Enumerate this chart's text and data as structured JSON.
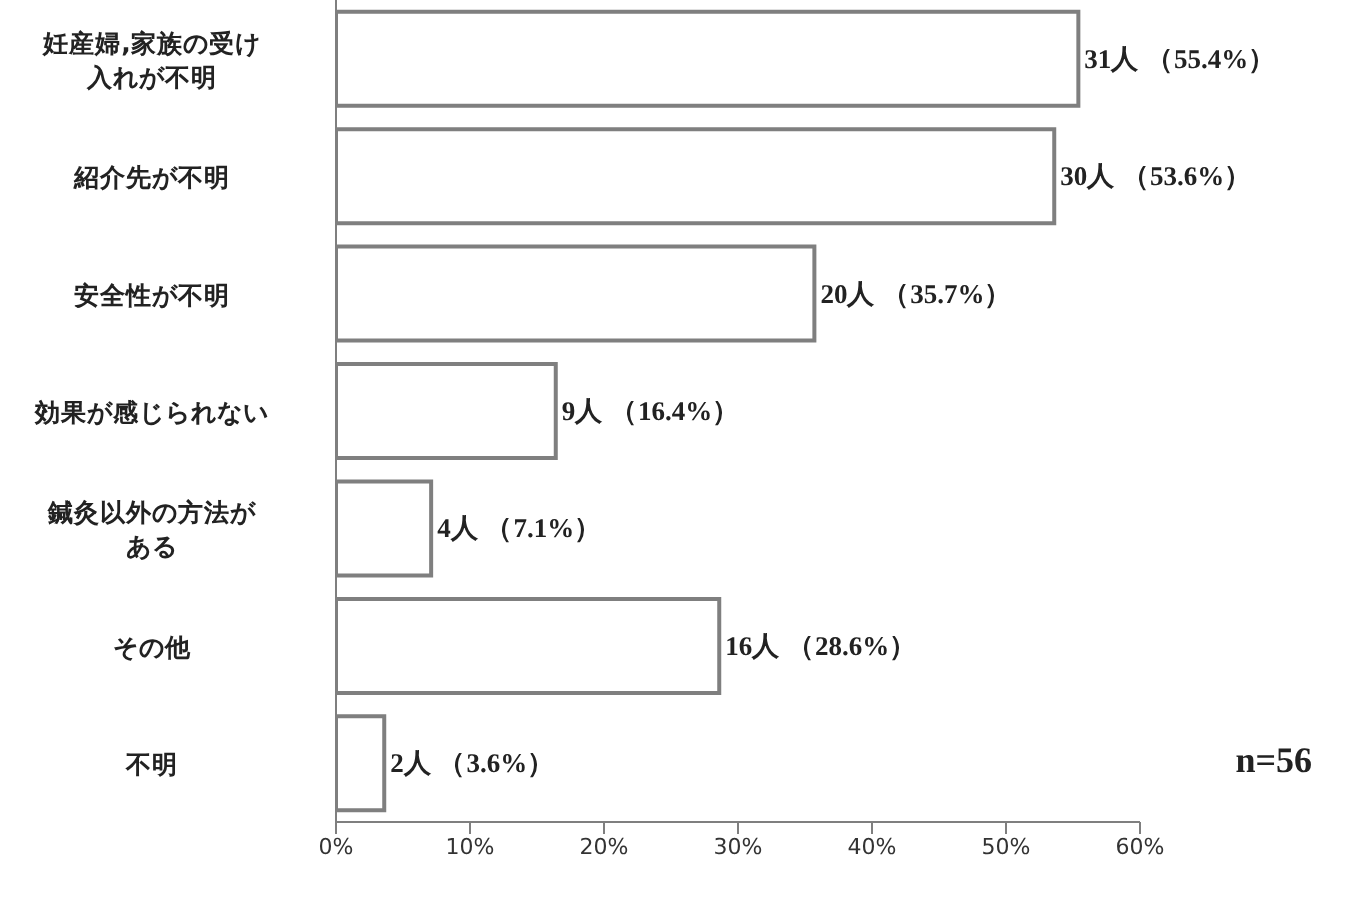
{
  "chart_data": {
    "type": "bar",
    "orientation": "horizontal",
    "categories": [
      "妊産婦,家族の受け入れが不明",
      "紹介先が不明",
      "安全性が不明",
      "効果が感じられない",
      "鍼灸以外の方法がある",
      "その他",
      "不明"
    ],
    "values": [
      55.4,
      53.6,
      35.7,
      16.4,
      7.1,
      28.6,
      3.6
    ],
    "color": "#ffffff",
    "value_labels": [
      "31人 （55.4%）",
      "30人 （53.6%）",
      "20人 （35.7%）",
      "9人 （16.4%）",
      "4人 （7.1%）",
      "16人 （28.6%）",
      "2人 （3.6%）"
    ],
    "xlim": [
      0,
      60
    ],
    "xticks": [
      {
        "value": 0,
        "label": "0%"
      },
      {
        "value": 10,
        "label": "10%"
      },
      {
        "value": 20,
        "label": "20%"
      },
      {
        "value": 30,
        "label": "30%"
      },
      {
        "value": 40,
        "label": "40%"
      },
      {
        "value": 50,
        "label": "50%"
      },
      {
        "value": 60,
        "label": "60%"
      }
    ],
    "annotations": [
      "n=56"
    ]
  }
}
